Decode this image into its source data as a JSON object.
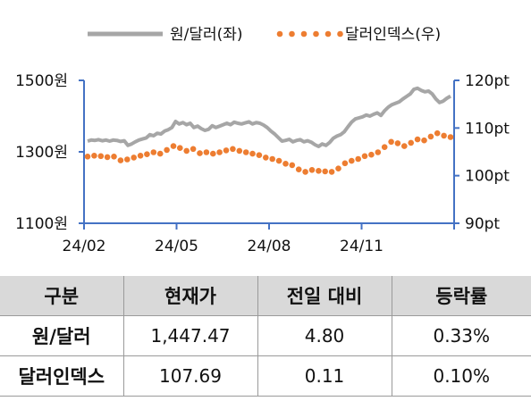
{
  "chart_data": {
    "type": "line",
    "x_ticks": [
      "24/02",
      "24/05",
      "24/08",
      "24/11"
    ],
    "y_left": {
      "ticks": [
        "1500원",
        "1300원",
        "1100원"
      ],
      "ylim": [
        1100,
        1500
      ]
    },
    "y_right": {
      "ticks": [
        "120pt",
        "110pt",
        "100pt",
        "90pt"
      ],
      "ylim": [
        90,
        120
      ]
    },
    "legend_position": "top",
    "series": [
      {
        "name": "원/달러(좌)",
        "axis": "left",
        "style": "solid",
        "color": "#a6a6a6",
        "values": [
          1330,
          1333,
          1332,
          1334,
          1331,
          1333,
          1330,
          1333,
          1332,
          1329,
          1331,
          1318,
          1322,
          1328,
          1333,
          1336,
          1339,
          1348,
          1345,
          1352,
          1350,
          1358,
          1362,
          1368,
          1385,
          1378,
          1382,
          1376,
          1380,
          1368,
          1372,
          1365,
          1360,
          1363,
          1373,
          1368,
          1372,
          1376,
          1380,
          1376,
          1383,
          1380,
          1378,
          1381,
          1384,
          1378,
          1382,
          1380,
          1375,
          1368,
          1358,
          1350,
          1340,
          1330,
          1332,
          1335,
          1328,
          1332,
          1334,
          1328,
          1331,
          1327,
          1320,
          1315,
          1322,
          1318,
          1326,
          1338,
          1344,
          1348,
          1356,
          1370,
          1383,
          1392,
          1395,
          1398,
          1403,
          1400,
          1405,
          1409,
          1402,
          1415,
          1425,
          1432,
          1436,
          1440,
          1448,
          1455,
          1462,
          1475,
          1478,
          1472,
          1468,
          1470,
          1462,
          1448,
          1438,
          1442,
          1450,
          1456
        ]
      },
      {
        "name": "달러인덱스(우)",
        "axis": "right",
        "style": "dotted",
        "color": "#ed7d31",
        "values": [
          104.0,
          104.2,
          104.1,
          103.9,
          104.0,
          103.2,
          103.4,
          103.8,
          104.2,
          104.5,
          104.9,
          104.6,
          105.4,
          106.2,
          105.8,
          105.2,
          105.6,
          104.7,
          104.9,
          104.6,
          104.9,
          105.3,
          105.6,
          105.2,
          104.9,
          104.6,
          104.3,
          103.8,
          103.5,
          103.1,
          102.5,
          102.2,
          101.3,
          100.8,
          101.2,
          101.0,
          100.9,
          100.8,
          101.5,
          102.6,
          103.1,
          103.5,
          104.1,
          104.4,
          104.9,
          106.0,
          107.1,
          106.8,
          106.2,
          106.9,
          107.6,
          107.4,
          108.2,
          108.9,
          108.4,
          108.1
        ]
      }
    ]
  },
  "table": {
    "headers": [
      "구분",
      "현재가",
      "전일 대비",
      "등락률"
    ],
    "rows": [
      {
        "label": "원/달러",
        "price": "1,447.47",
        "change": "4.80",
        "rate": "0.33%"
      },
      {
        "label": "달러인덱스",
        "price": "107.69",
        "change": "0.11",
        "rate": "0.10%"
      }
    ]
  },
  "colors": {
    "axis": "#4472c4",
    "header_bg": "#d9d9d9",
    "grid": "#9a9a9a"
  }
}
